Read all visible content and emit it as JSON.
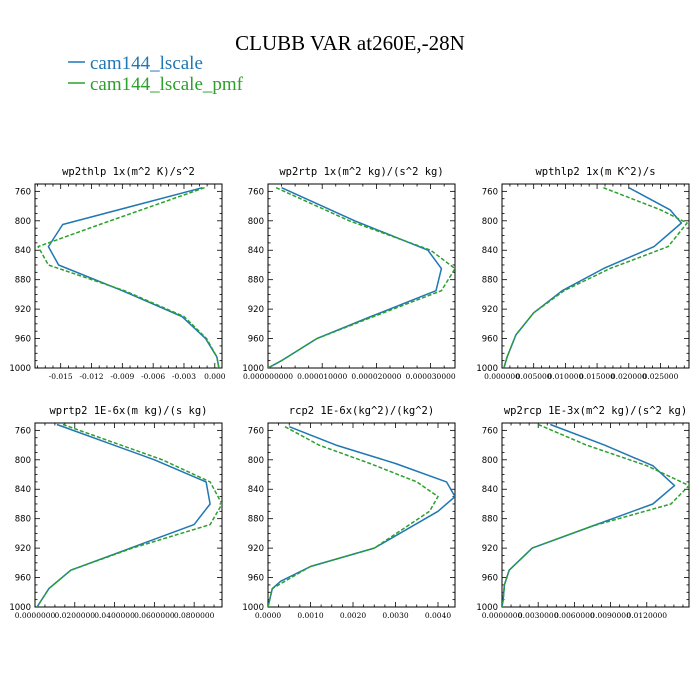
{
  "title": "CLUBB VAR at260E,-28N",
  "legend": [
    {
      "label": "cam144_lscale",
      "color": "#1f77b4",
      "dash": "solid"
    },
    {
      "label": "cam144_lscale_pmf",
      "color": "#2ca02c",
      "dash": "dashed"
    }
  ],
  "colors": {
    "series1": "#1f77b4",
    "series2": "#2ca02c"
  },
  "chart_data": [
    {
      "type": "line",
      "title": "wp2thlp  1x(m^2 K)/s^2",
      "ylim": [
        1000,
        750
      ],
      "yticks": [
        760,
        800,
        840,
        880,
        920,
        960,
        1000
      ],
      "ytick_labels": [
        "760",
        "800",
        "840",
        "880",
        "920",
        "960",
        "1000"
      ],
      "xlim": [
        -0.0175,
        0.0007
      ],
      "xticks": [
        -0.015,
        -0.012,
        -0.009,
        -0.006,
        -0.003,
        0.0
      ],
      "xtick_labels": [
        "-0.015",
        "-0.012",
        "-0.009",
        "-0.006",
        "-0.003",
        "0.000"
      ],
      "y": [
        755,
        805,
        835,
        860,
        895,
        930,
        960,
        985,
        1000
      ],
      "series": [
        {
          "name": "cam144_lscale",
          "x": [
            -0.0012,
            -0.0148,
            -0.0162,
            -0.0152,
            -0.009,
            -0.0032,
            -0.0009,
            0.0002,
            0.0004
          ]
        },
        {
          "name": "cam144_lscale_pmf",
          "x": [
            -0.001,
            -0.0112,
            -0.0172,
            -0.0162,
            -0.0088,
            -0.003,
            -0.0008,
            0.0002,
            0.0004
          ]
        }
      ]
    },
    {
      "type": "line",
      "title": "wp2rtp  1x(m^2 kg)/(s^2 kg)",
      "ylim": [
        1000,
        750
      ],
      "yticks": [
        760,
        800,
        840,
        880,
        920,
        960,
        1000
      ],
      "ytick_labels": [
        "760",
        "800",
        "840",
        "880",
        "920",
        "960",
        "1000"
      ],
      "xlim": [
        0,
        3.45e-05
      ],
      "xticks": [
        0,
        1e-05,
        2e-05,
        3e-05
      ],
      "xtick_labels": [
        "0.000000000",
        "0.000010000",
        "0.000020000",
        "0.000030000"
      ],
      "y": [
        755,
        800,
        840,
        865,
        895,
        930,
        960,
        990,
        1000
      ],
      "series": [
        {
          "name": "cam144_lscale",
          "x": [
            2.5e-06,
            1.6e-05,
            2.95e-05,
            3.2e-05,
            3.1e-05,
            1.9e-05,
            9e-06,
            2.5e-06,
            0.0
          ]
        },
        {
          "name": "cam144_lscale_pmf",
          "x": [
            1.5e-06,
            1.5e-05,
            3e-05,
            3.45e-05,
            3.2e-05,
            1.95e-05,
            9e-06,
            2.5e-06,
            0.0
          ]
        }
      ]
    },
    {
      "type": "line",
      "title": "wpthlp2  1x(m K^2)/s",
      "ylim": [
        1000,
        750
      ],
      "yticks": [
        760,
        800,
        840,
        880,
        920,
        960,
        1000
      ],
      "ytick_labels": [
        "760",
        "800",
        "840",
        "880",
        "920",
        "960",
        "1000"
      ],
      "xlim": [
        0,
        0.0295
      ],
      "xticks": [
        0,
        0.005,
        0.01,
        0.015,
        0.02,
        0.025
      ],
      "xtick_labels": [
        "0.000000",
        "0.005000",
        "0.010000",
        "0.015000",
        "0.020000",
        "0.025000"
      ],
      "y": [
        755,
        785,
        803,
        835,
        865,
        895,
        925,
        955,
        985,
        1000
      ],
      "series": [
        {
          "name": "cam144_lscale",
          "x": [
            0.02,
            0.0265,
            0.0283,
            0.024,
            0.016,
            0.0095,
            0.005,
            0.0022,
            0.0008,
            0.0003
          ]
        },
        {
          "name": "cam144_lscale_pmf",
          "x": [
            0.016,
            0.025,
            0.0292,
            0.0262,
            0.017,
            0.0098,
            0.005,
            0.0022,
            0.0008,
            0.0003
          ]
        }
      ]
    },
    {
      "type": "line",
      "title": "wprtp2  1E-6x(m kg)/(s kg)",
      "ylim": [
        1000,
        750
      ],
      "yticks": [
        760,
        800,
        840,
        880,
        920,
        960,
        1000
      ],
      "ytick_labels": [
        "760",
        "800",
        "840",
        "880",
        "920",
        "960",
        "1000"
      ],
      "xlim": [
        0,
        0.094
      ],
      "xticks": [
        0,
        0.02,
        0.04,
        0.06,
        0.08
      ],
      "xtick_labels": [
        "0.0000000",
        "0.0200000",
        "0.0400000",
        "0.0600000",
        "0.0800000"
      ],
      "y": [
        752,
        800,
        830,
        860,
        888,
        920,
        950,
        975,
        1000
      ],
      "series": [
        {
          "name": "cam144_lscale",
          "x": [
            0.011,
            0.06,
            0.086,
            0.088,
            0.08,
            0.048,
            0.018,
            0.007,
            0.001
          ]
        },
        {
          "name": "cam144_lscale_pmf",
          "x": [
            0.014,
            0.064,
            0.088,
            0.094,
            0.088,
            0.049,
            0.018,
            0.007,
            0.001
          ]
        }
      ]
    },
    {
      "type": "line",
      "title": "rcp2  1E-6x(kg^2)/(kg^2)",
      "ylim": [
        1000,
        750
      ],
      "yticks": [
        760,
        800,
        840,
        880,
        920,
        960,
        1000
      ],
      "ytick_labels": [
        "760",
        "800",
        "840",
        "880",
        "920",
        "960",
        "1000"
      ],
      "xlim": [
        0,
        0.0044
      ],
      "xticks": [
        0,
        0.001,
        0.002,
        0.003,
        0.004
      ],
      "xtick_labels": [
        "0.0000",
        "0.0010",
        "0.0020",
        "0.0030",
        "0.0040"
      ],
      "y": [
        755,
        780,
        805,
        830,
        850,
        870,
        920,
        945,
        965,
        975,
        1000
      ],
      "series": [
        {
          "name": "cam144_lscale",
          "x": [
            0.0005,
            0.0016,
            0.003,
            0.0042,
            0.0044,
            0.004,
            0.0025,
            0.001,
            0.0003,
            0.0001,
            0.0
          ]
        },
        {
          "name": "cam144_lscale_pmf",
          "x": [
            0.0004,
            0.0012,
            0.0024,
            0.0035,
            0.004,
            0.0038,
            0.0025,
            0.001,
            0.0004,
            0.0001,
            0.0
          ]
        }
      ]
    },
    {
      "type": "line",
      "title": "wp2rcp  1E-3x(m^2 kg)/(s^2 kg)",
      "ylim": [
        1000,
        750
      ],
      "yticks": [
        760,
        800,
        840,
        880,
        920,
        960,
        1000
      ],
      "ytick_labels": [
        "760",
        "800",
        "840",
        "880",
        "920",
        "960",
        "1000"
      ],
      "xlim": [
        0,
        0.0155
      ],
      "xticks": [
        0,
        0.003,
        0.006,
        0.009,
        0.012
      ],
      "xtick_labels": [
        "0.0000000",
        "0.0030000",
        "0.0060000",
        "0.0090000",
        "0.0120000"
      ],
      "y": [
        752,
        780,
        808,
        835,
        860,
        890,
        920,
        950,
        970,
        990,
        1000
      ],
      "series": [
        {
          "name": "cam144_lscale",
          "x": [
            0.004,
            0.0085,
            0.0125,
            0.0143,
            0.0125,
            0.0075,
            0.0025,
            0.0006,
            0.0002,
            0.0001,
            0.0
          ]
        },
        {
          "name": "cam144_lscale_pmf",
          "x": [
            0.003,
            0.007,
            0.012,
            0.0155,
            0.014,
            0.0075,
            0.0025,
            0.0006,
            0.0002,
            0.0001,
            0.0
          ]
        }
      ]
    }
  ]
}
